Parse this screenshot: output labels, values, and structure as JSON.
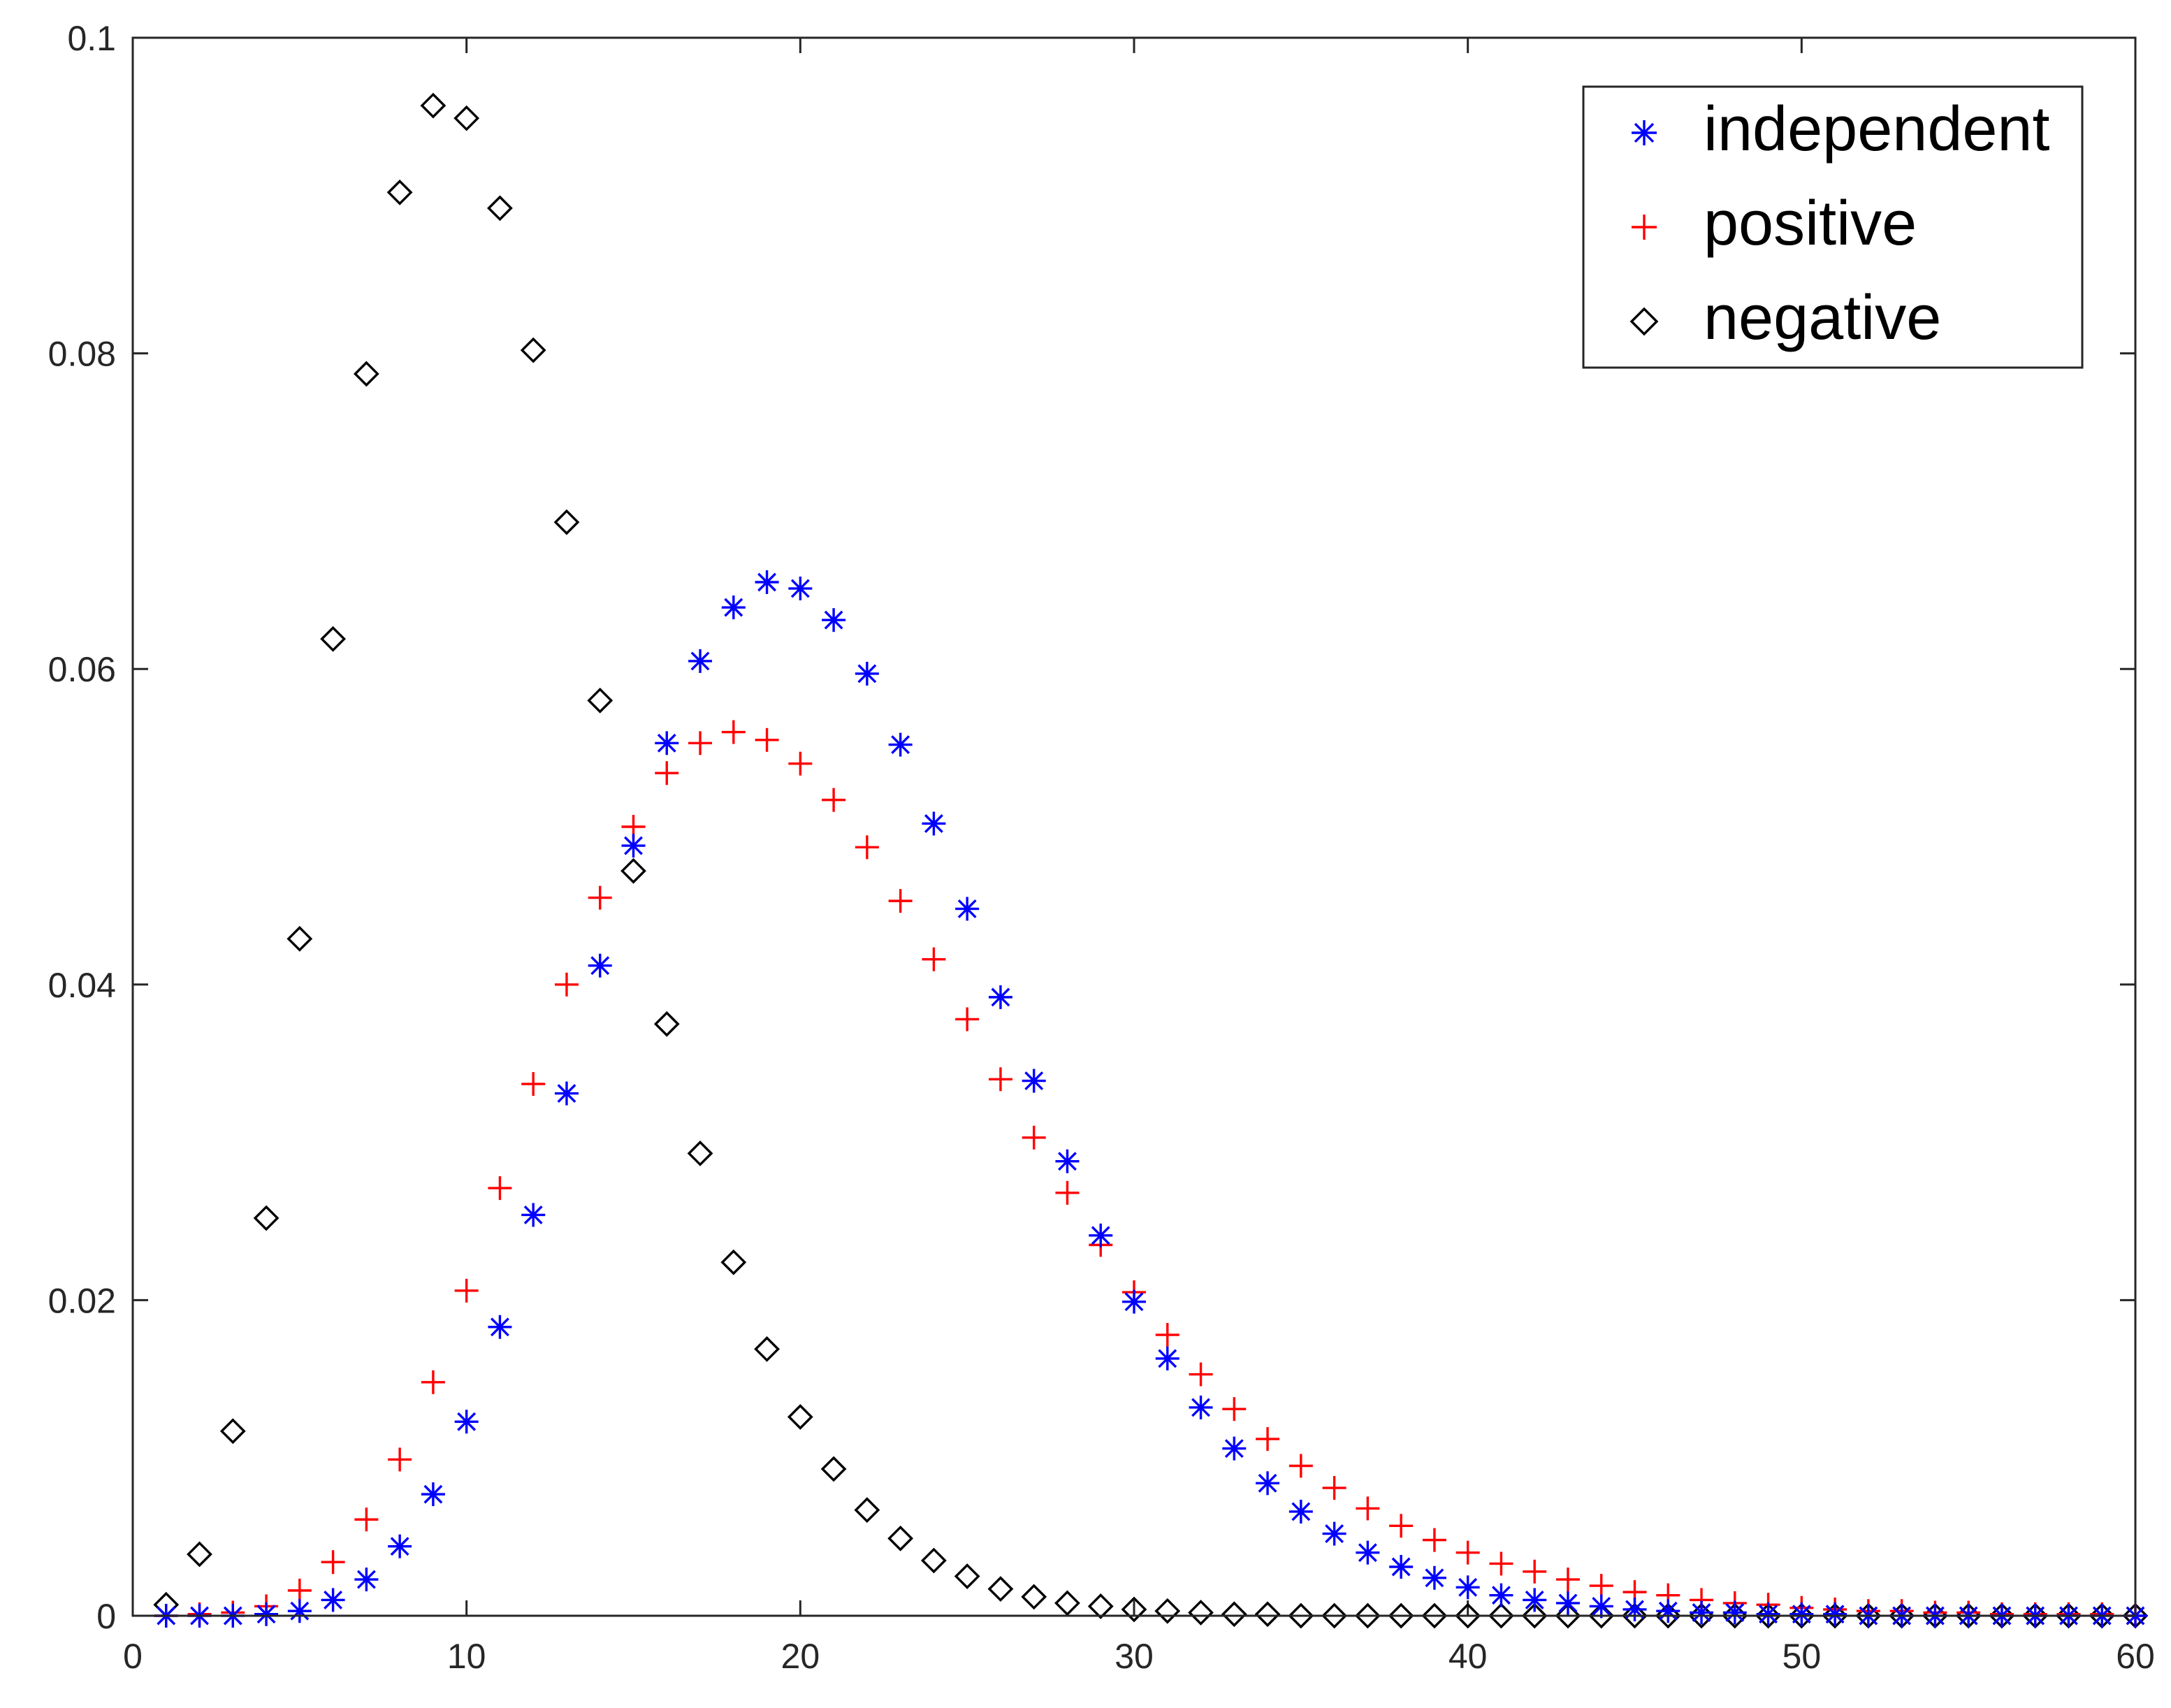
{
  "chart_data": {
    "type": "scatter",
    "title": "",
    "xlabel": "",
    "ylabel": "",
    "xlim": [
      0,
      60
    ],
    "ylim": [
      0,
      0.1
    ],
    "xticks": [
      "0",
      "10",
      "20",
      "30",
      "40",
      "50",
      "60"
    ],
    "yticks": [
      "0",
      "0.02",
      "0.04",
      "0.06",
      "0.08",
      "0.1"
    ],
    "grid": false,
    "legend_position": "top-right",
    "x": [
      1,
      2,
      3,
      4,
      5,
      6,
      7,
      8,
      9,
      10,
      11,
      12,
      13,
      14,
      15,
      16,
      17,
      18,
      19,
      20,
      21,
      22,
      23,
      24,
      25,
      26,
      27,
      28,
      29,
      30,
      31,
      32,
      33,
      34,
      35,
      36,
      37,
      38,
      39,
      40,
      41,
      42,
      43,
      44,
      45,
      46,
      47,
      48,
      49,
      50,
      51,
      52,
      53,
      54,
      55,
      56,
      57,
      58,
      59,
      60
    ],
    "series": [
      {
        "name": "independent",
        "marker": "asterisk",
        "color": "#0000ff",
        "values": [
          0.0,
          0.0,
          0.0,
          0.0001,
          0.0003,
          0.001,
          0.0023,
          0.0044,
          0.0077,
          0.0123,
          0.0183,
          0.0254,
          0.0331,
          0.0412,
          0.0488,
          0.0553,
          0.0605,
          0.0639,
          0.0655,
          0.0651,
          0.0631,
          0.0597,
          0.0552,
          0.0502,
          0.0448,
          0.0392,
          0.0339,
          0.0288,
          0.0241,
          0.0199,
          0.0163,
          0.0132,
          0.0106,
          0.0084,
          0.0066,
          0.0052,
          0.004,
          0.0031,
          0.0024,
          0.0018,
          0.0013,
          0.001,
          0.0008,
          0.0006,
          0.0004,
          0.0003,
          0.0002,
          0.0002,
          0.0001,
          0.0001,
          0.0001,
          0.0,
          0.0,
          0.0,
          0.0,
          0.0,
          0.0,
          0.0,
          0.0,
          0.0
        ]
      },
      {
        "name": "positive",
        "marker": "plus",
        "color": "#ff0000",
        "values": [
          0.0,
          0.0001,
          0.0002,
          0.0006,
          0.0016,
          0.0034,
          0.0061,
          0.0099,
          0.0148,
          0.0206,
          0.0271,
          0.0337,
          0.04,
          0.0455,
          0.05,
          0.0534,
          0.0553,
          0.056,
          0.0555,
          0.054,
          0.0517,
          0.0487,
          0.0453,
          0.0416,
          0.0378,
          0.034,
          0.0303,
          0.0268,
          0.0235,
          0.0205,
          0.0178,
          0.0153,
          0.0131,
          0.0112,
          0.0095,
          0.0081,
          0.0068,
          0.0057,
          0.0048,
          0.004,
          0.0033,
          0.0028,
          0.0023,
          0.0019,
          0.0015,
          0.0013,
          0.001,
          0.0008,
          0.0007,
          0.0005,
          0.0004,
          0.0003,
          0.0003,
          0.0002,
          0.0002,
          0.0001,
          0.0001,
          0.0001,
          0.0001,
          0.0
        ]
      },
      {
        "name": "negative",
        "marker": "diamond",
        "color": "#000000",
        "values": [
          0.0007,
          0.0039,
          0.0117,
          0.0252,
          0.0429,
          0.0619,
          0.0787,
          0.0902,
          0.0957,
          0.0949,
          0.0892,
          0.0802,
          0.0693,
          0.058,
          0.0472,
          0.0375,
          0.0293,
          0.0224,
          0.0169,
          0.0126,
          0.0093,
          0.0067,
          0.0049,
          0.0035,
          0.0025,
          0.0017,
          0.0012,
          0.0008,
          0.0006,
          0.0004,
          0.0003,
          0.0002,
          0.0001,
          0.0001,
          0.0,
          0.0,
          0.0,
          0.0,
          0.0,
          0.0,
          0.0,
          0.0,
          0.0,
          0.0,
          0.0,
          0.0,
          0.0,
          0.0,
          0.0,
          0.0,
          0.0,
          0.0,
          0.0,
          0.0,
          0.0,
          0.0,
          0.0,
          0.0,
          0.0,
          0.0
        ]
      }
    ],
    "legend": {
      "entries": [
        "independent",
        "positive",
        "negative"
      ]
    }
  }
}
